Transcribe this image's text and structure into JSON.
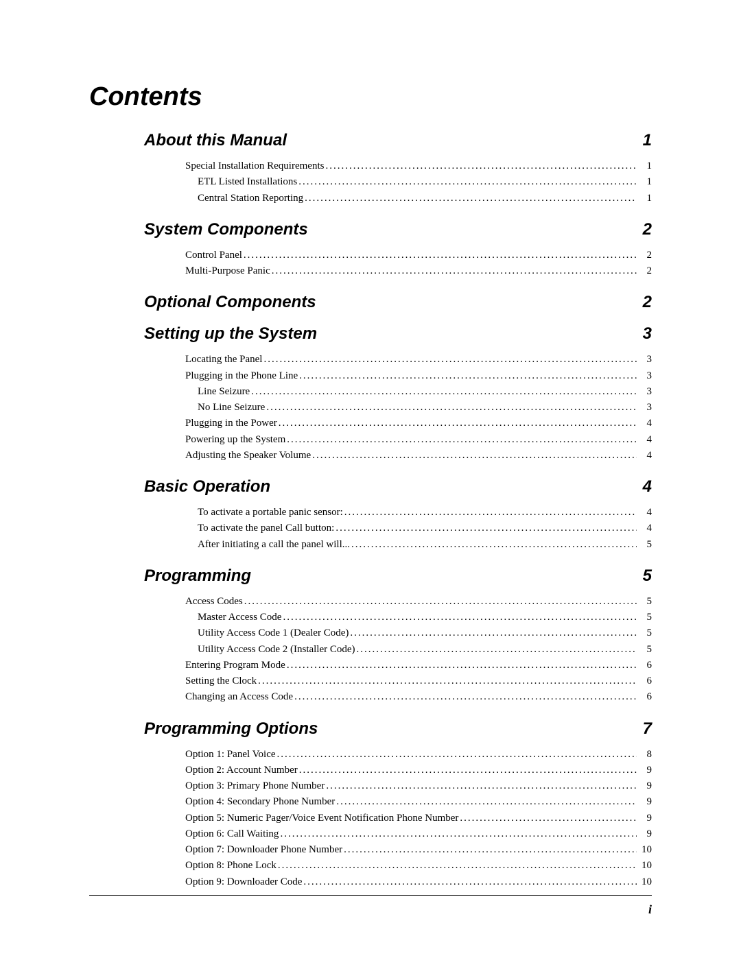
{
  "title": "Contents",
  "page_number": "i",
  "sections": [
    {
      "title": "About this Manual",
      "page": "1",
      "entries": [
        {
          "label": "Special Installation Requirements",
          "page": "1",
          "indent": 0
        },
        {
          "label": "ETL Listed Installations",
          "page": "1",
          "indent": 1
        },
        {
          "label": "Central Station Reporting",
          "page": "1",
          "indent": 1
        }
      ]
    },
    {
      "title": "System Components",
      "page": "2",
      "entries": [
        {
          "label": "Control Panel",
          "page": "2",
          "indent": 0
        },
        {
          "label": "Multi-Purpose Panic",
          "page": "2",
          "indent": 0
        }
      ]
    },
    {
      "title": "Optional Components",
      "page": "2",
      "entries": []
    },
    {
      "title": "Setting up the System",
      "page": "3",
      "entries": [
        {
          "label": "Locating the Panel",
          "page": "3",
          "indent": 0
        },
        {
          "label": "Plugging in the Phone Line",
          "page": "3",
          "indent": 0
        },
        {
          "label": "Line Seizure",
          "page": "3",
          "indent": 1
        },
        {
          "label": "No Line Seizure",
          "page": "3",
          "indent": 1
        },
        {
          "label": "Plugging in the Power",
          "page": "4",
          "indent": 0
        },
        {
          "label": "Powering up the System",
          "page": "4",
          "indent": 0
        },
        {
          "label": "Adjusting the Speaker Volume",
          "page": "4",
          "indent": 0
        }
      ]
    },
    {
      "title": "Basic Operation",
      "page": "4",
      "entries": [
        {
          "label": "To activate a portable panic sensor:",
          "page": "4",
          "indent": 1
        },
        {
          "label": "To activate the panel Call button:",
          "page": "4",
          "indent": 1
        },
        {
          "label": "After initiating a call the panel will...",
          "page": "5",
          "indent": 1
        }
      ]
    },
    {
      "title": "Programming",
      "page": "5",
      "entries": [
        {
          "label": "Access Codes",
          "page": "5",
          "indent": 0
        },
        {
          "label": "Master Access Code",
          "page": "5",
          "indent": 1
        },
        {
          "label": "Utility Access Code 1 (Dealer Code)",
          "page": "5",
          "indent": 1
        },
        {
          "label": "Utility Access Code 2 (Installer Code)",
          "page": "5",
          "indent": 1
        },
        {
          "label": "Entering Program Mode",
          "page": "6",
          "indent": 0
        },
        {
          "label": "Setting the Clock",
          "page": "6",
          "indent": 0
        },
        {
          "label": "Changing an Access Code",
          "page": "6",
          "indent": 0
        }
      ]
    },
    {
      "title": "Programming Options",
      "page": "7",
      "entries": [
        {
          "label": "Option 1: Panel Voice",
          "page": "8",
          "indent": 0
        },
        {
          "label": "Option 2: Account Number",
          "page": "9",
          "indent": 0
        },
        {
          "label": "Option 3: Primary Phone Number",
          "page": "9",
          "indent": 0
        },
        {
          "label": "Option 4: Secondary Phone Number",
          "page": "9",
          "indent": 0
        },
        {
          "label": "Option 5: Numeric Pager/Voice Event Notification Phone Number",
          "page": "9",
          "indent": 0
        },
        {
          "label": "Option 6: Call Waiting",
          "page": "9",
          "indent": 0
        },
        {
          "label": "Option 7: Downloader Phone Number",
          "page": "10",
          "indent": 0
        },
        {
          "label": "Option 8: Phone Lock",
          "page": "10",
          "indent": 0
        },
        {
          "label": "Option 9: Downloader Code",
          "page": "10",
          "indent": 0
        }
      ]
    }
  ]
}
